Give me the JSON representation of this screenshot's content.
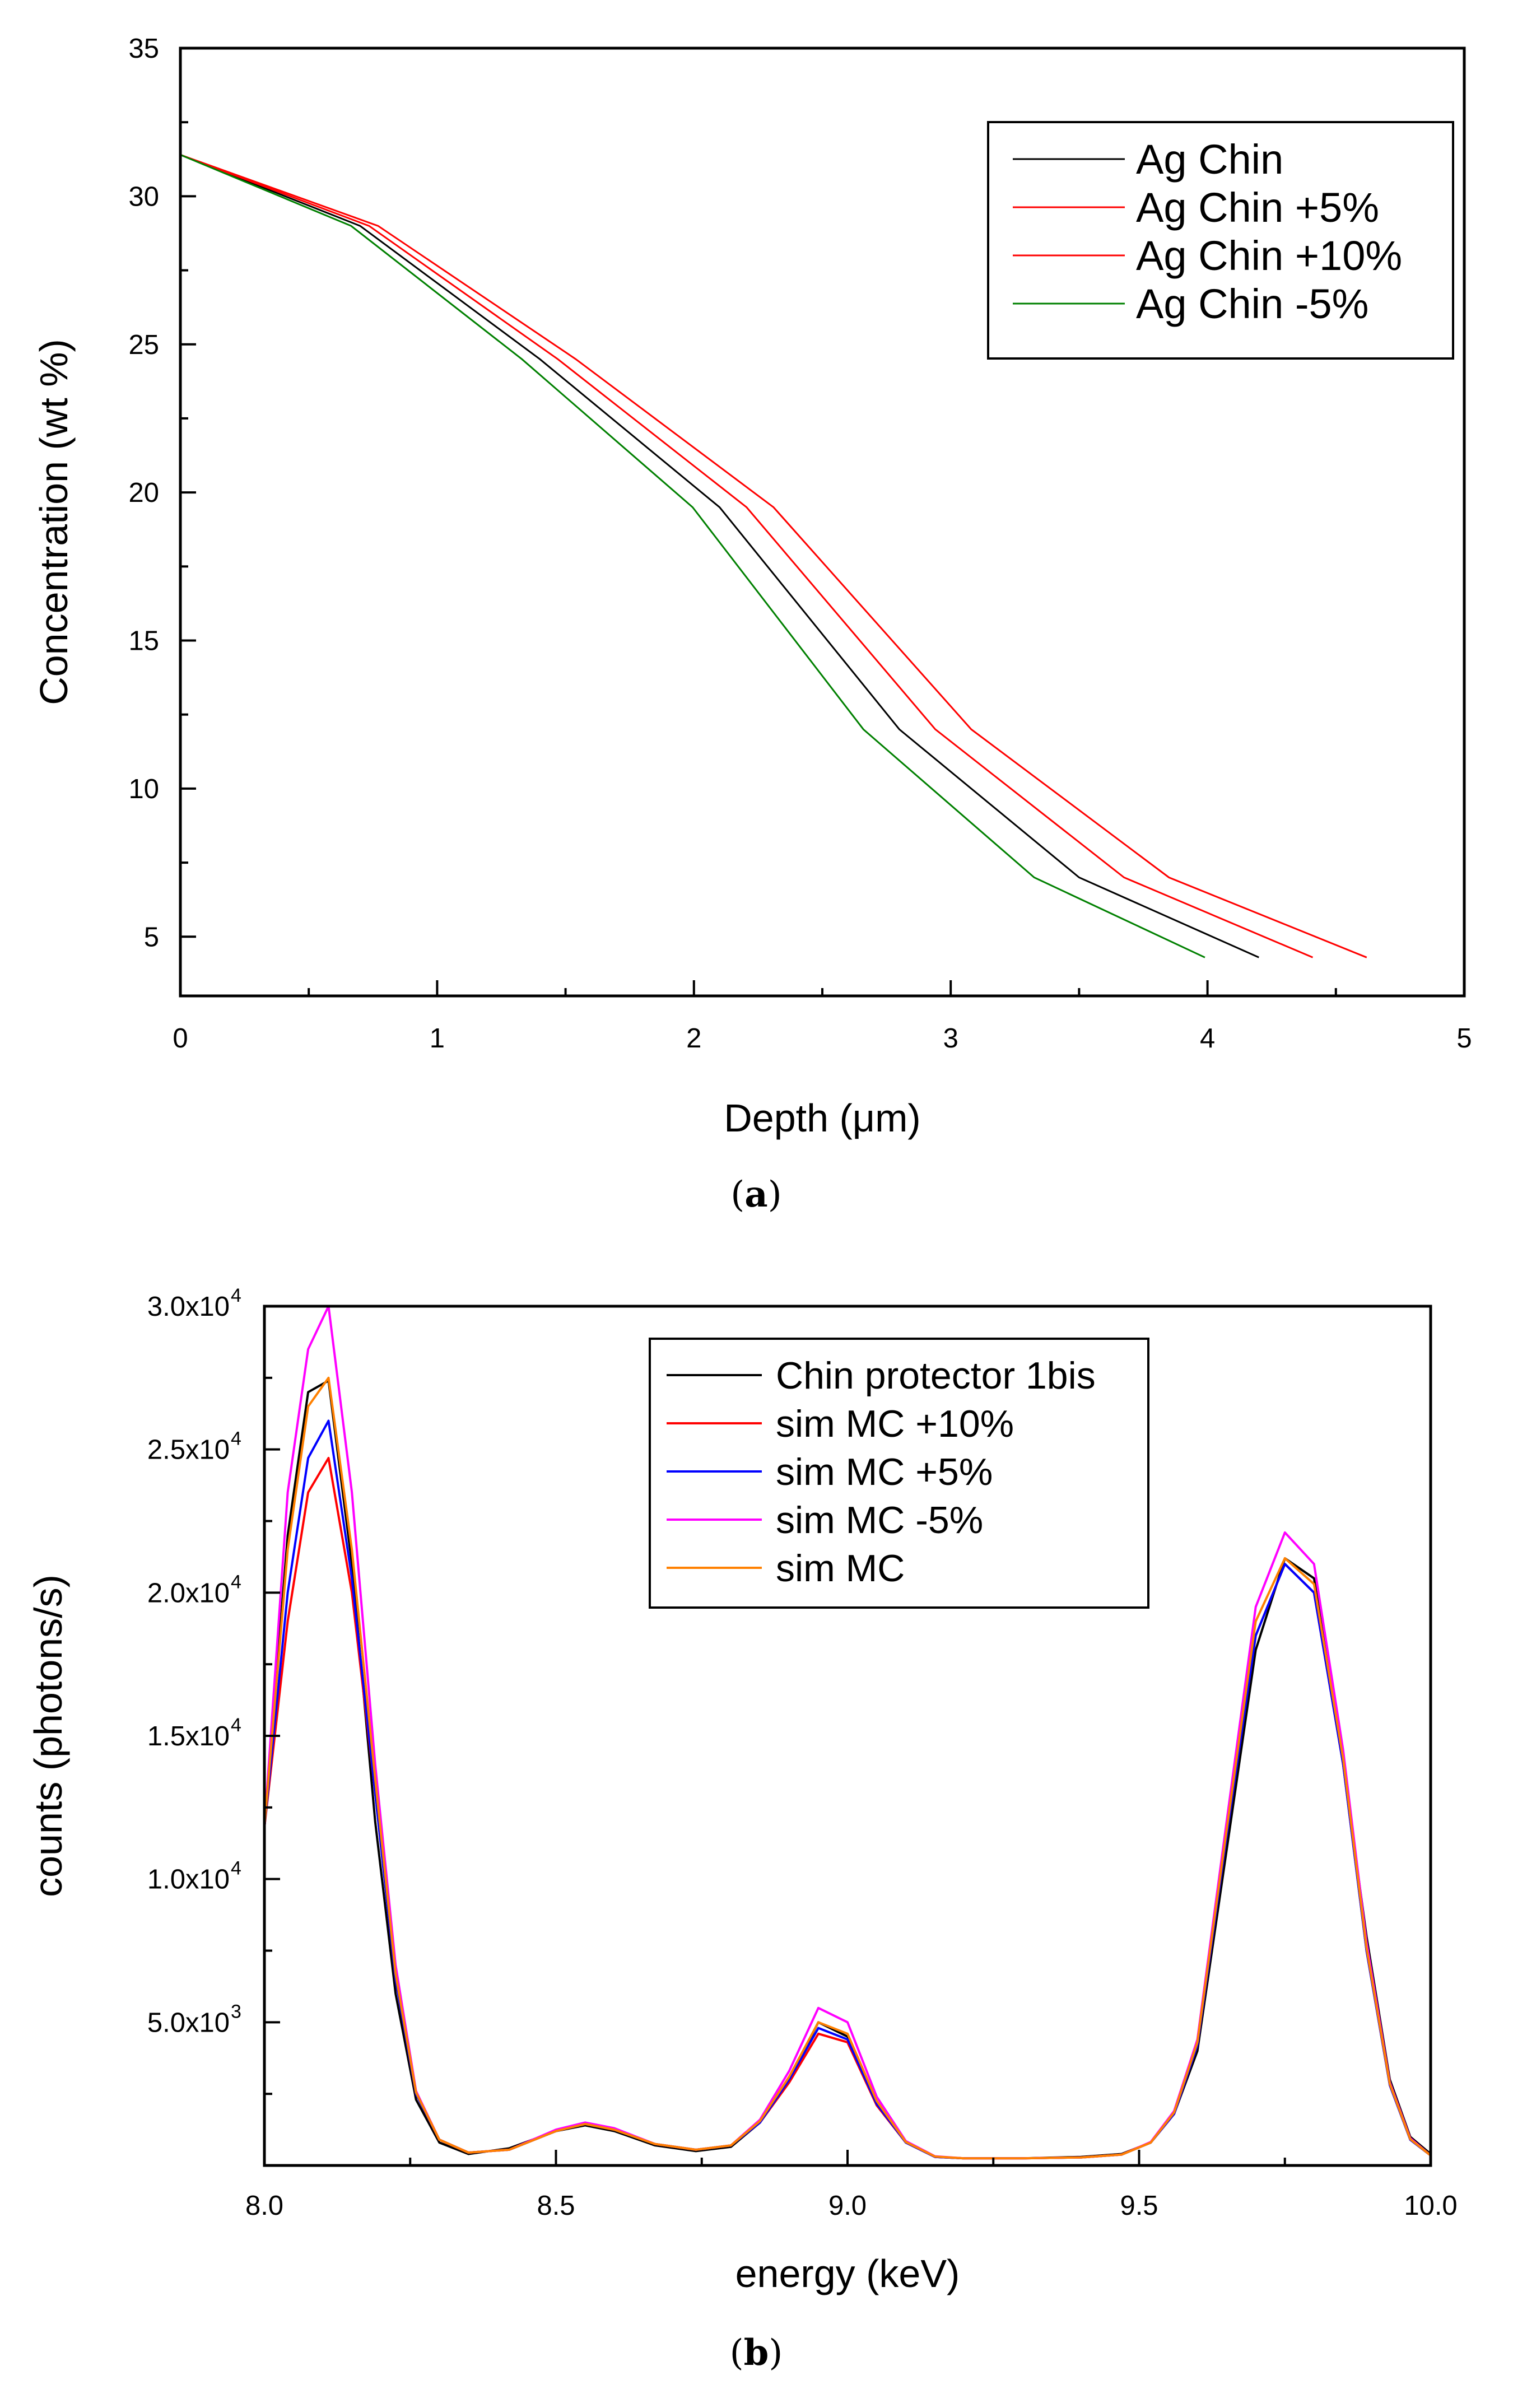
{
  "chart_data": [
    {
      "type": "line",
      "caption_letter": "a",
      "xlabel": "Depth (μm)",
      "ylabel": "Concentration (wt %)",
      "xlim": [
        0,
        5
      ],
      "ylim": [
        3,
        35
      ],
      "xticks": [
        0,
        1,
        2,
        3,
        4,
        5
      ],
      "yticks": [
        5,
        10,
        15,
        20,
        25,
        30,
        35
      ],
      "x_tick_labels": [
        "0",
        "1",
        "2",
        "3",
        "4",
        "5"
      ],
      "y_tick_labels": [
        "5",
        "10",
        "15",
        "20",
        "25",
        "30",
        "35"
      ],
      "legend_position": "top-right",
      "grid": false,
      "series": [
        {
          "name": "Ag Chin",
          "color": "#000000",
          "x": [
            0,
            0.7,
            1.4,
            2.1,
            2.8,
            3.5,
            4.2
          ],
          "y": [
            31.4,
            29.0,
            24.5,
            19.5,
            12.0,
            7.0,
            4.3
          ]
        },
        {
          "name": "Ag Chin +5%",
          "color": "#ff0000",
          "x": [
            0,
            0.735,
            1.47,
            2.205,
            2.94,
            3.675,
            4.41
          ],
          "y": [
            31.4,
            29.0,
            24.5,
            19.5,
            12.0,
            7.0,
            4.3
          ]
        },
        {
          "name": "Ag Chin +10%",
          "color": "#ff0000",
          "x": [
            0,
            0.77,
            1.54,
            2.31,
            3.08,
            3.85,
            4.62
          ],
          "y": [
            31.4,
            29.0,
            24.5,
            19.5,
            12.0,
            7.0,
            4.3
          ]
        },
        {
          "name": "Ag Chin -5%",
          "color": "#008000",
          "x": [
            0,
            0.665,
            1.33,
            1.995,
            2.66,
            3.325,
            3.99
          ],
          "y": [
            31.4,
            29.0,
            24.5,
            19.5,
            12.0,
            7.0,
            4.3
          ]
        }
      ]
    },
    {
      "type": "line",
      "caption_letter": "b",
      "xlabel": "energy (keV)",
      "ylabel": "counts (photons/s)",
      "xlim": [
        8.0,
        10.0
      ],
      "ylim": [
        0,
        30000
      ],
      "xticks": [
        8.0,
        8.5,
        9.0,
        9.5,
        10.0
      ],
      "x_tick_labels": [
        "8.0",
        "8.5",
        "9.0",
        "9.5",
        "10.0"
      ],
      "yticks": [
        5000,
        10000,
        15000,
        20000,
        25000,
        30000
      ],
      "y_tick_mantissas": [
        "5.0x10",
        "1.0x10",
        "1.5x10",
        "2.0x10",
        "2.5x10",
        "3.0x10"
      ],
      "y_tick_exponents": [
        "3",
        "4",
        "4",
        "4",
        "4",
        "4"
      ],
      "legend_position": "top-right",
      "grid": false,
      "x": [
        8.0,
        8.04,
        8.075,
        8.11,
        8.15,
        8.19,
        8.225,
        8.26,
        8.3,
        8.35,
        8.42,
        8.5,
        8.55,
        8.6,
        8.67,
        8.74,
        8.8,
        8.85,
        8.9,
        8.95,
        9.0,
        9.05,
        9.1,
        9.15,
        9.2,
        9.3,
        9.4,
        9.47,
        9.52,
        9.56,
        9.6,
        9.65,
        9.7,
        9.75,
        9.8,
        9.85,
        9.89,
        9.93,
        9.965,
        10.0
      ],
      "series": [
        {
          "name": "Chin protector 1bis",
          "color": "#000000",
          "values": [
            11800,
            22000,
            27000,
            27400,
            21000,
            12000,
            6000,
            2300,
            800,
            400,
            600,
            1200,
            1400,
            1200,
            700,
            500,
            650,
            1500,
            3000,
            5000,
            4500,
            2200,
            800,
            300,
            250,
            250,
            300,
            400,
            800,
            1800,
            4000,
            11000,
            18000,
            21200,
            20500,
            14000,
            8000,
            3000,
            1000,
            400
          ]
        },
        {
          "name": "sim MC +10%",
          "color": "#ff0000",
          "values": [
            11800,
            19000,
            23500,
            24700,
            20000,
            13000,
            6500,
            2500,
            900,
            450,
            550,
            1200,
            1450,
            1250,
            750,
            550,
            700,
            1500,
            2900,
            4600,
            4300,
            2100,
            800,
            300,
            250,
            250,
            280,
            380,
            800,
            1800,
            4200,
            11500,
            18500,
            21000,
            20000,
            14000,
            7500,
            2800,
            900,
            350
          ]
        },
        {
          "name": "sim MC +5%",
          "color": "#0000ff",
          "values": [
            11800,
            20000,
            24700,
            26000,
            20500,
            13000,
            6500,
            2500,
            900,
            450,
            550,
            1200,
            1450,
            1250,
            750,
            550,
            700,
            1500,
            3000,
            4800,
            4400,
            2150,
            800,
            300,
            250,
            250,
            280,
            380,
            800,
            1800,
            4200,
            11500,
            18500,
            21000,
            20000,
            14000,
            7500,
            2800,
            900,
            350
          ]
        },
        {
          "name": "sim MC -5%",
          "color": "#ff00ff",
          "values": [
            11800,
            23500,
            28500,
            30000,
            23500,
            14000,
            7000,
            2600,
            900,
            450,
            550,
            1250,
            1500,
            1300,
            750,
            550,
            700,
            1600,
            3300,
            5500,
            5000,
            2400,
            850,
            320,
            250,
            250,
            280,
            380,
            820,
            1900,
            4400,
            12000,
            19500,
            22100,
            21000,
            14500,
            7800,
            2900,
            950,
            350
          ]
        },
        {
          "name": "sim MC",
          "color": "#ff8000",
          "values": [
            11800,
            21500,
            26500,
            27500,
            21500,
            13500,
            6700,
            2550,
            900,
            450,
            550,
            1200,
            1450,
            1250,
            750,
            550,
            700,
            1550,
            3100,
            5000,
            4600,
            2250,
            820,
            310,
            250,
            250,
            280,
            380,
            800,
            1850,
            4300,
            11700,
            19000,
            21200,
            20300,
            14200,
            7600,
            2850,
            920,
            350
          ]
        }
      ]
    }
  ]
}
